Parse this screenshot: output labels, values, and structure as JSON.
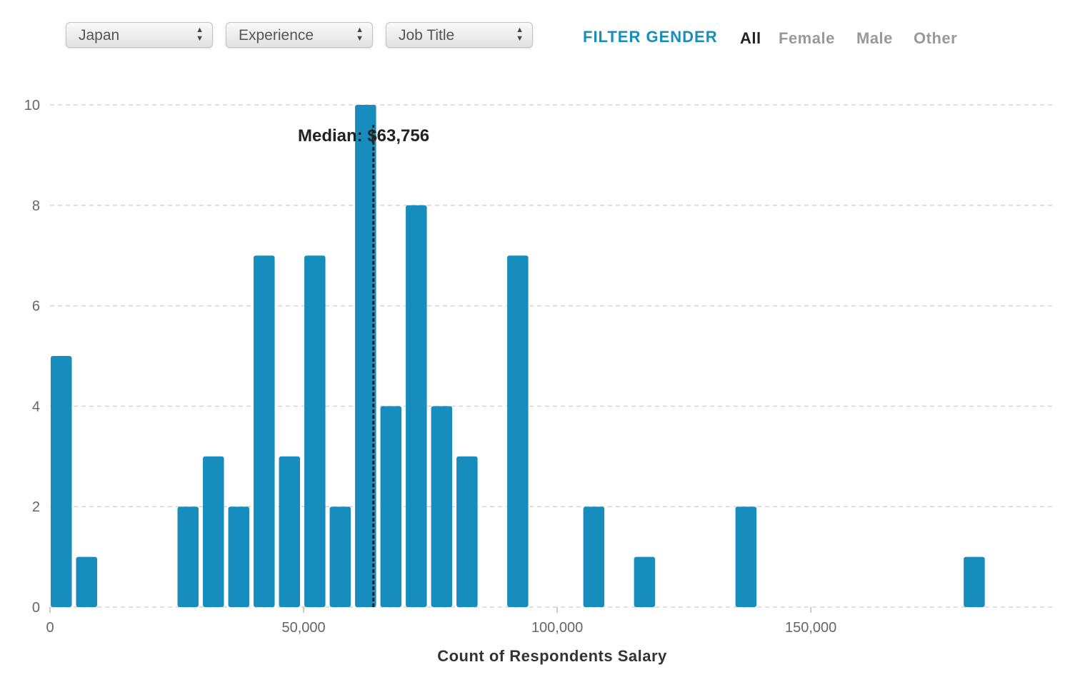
{
  "filters": {
    "country": "Japan",
    "experience": "Experience",
    "job_title": "Job Title"
  },
  "gender_filter": {
    "title": "FILTER GENDER",
    "options": [
      "All",
      "Female",
      "Male",
      "Other"
    ],
    "active": "All"
  },
  "colors": {
    "bar": "#168dbc",
    "accent": "#168dbc",
    "gridline": "#d5d5d5",
    "median_line": "#222222"
  },
  "chart_data": {
    "type": "bar",
    "title": "",
    "xlabel": "Count of Respondents Salary",
    "ylabel": "",
    "xlim": [
      0,
      198000
    ],
    "ylim": [
      0,
      10
    ],
    "yticks": [
      0,
      2,
      4,
      6,
      8,
      10
    ],
    "xticks": [
      0,
      50000,
      100000,
      150000
    ],
    "xtick_labels": [
      "0",
      "50,000",
      "100,000",
      "150,000"
    ],
    "grid": "horizontal dashed",
    "bin_width": 5000,
    "bins": [
      {
        "x0": 0,
        "x1": 5000,
        "count": 5
      },
      {
        "x0": 5000,
        "x1": 10000,
        "count": 1
      },
      {
        "x0": 25000,
        "x1": 30000,
        "count": 2
      },
      {
        "x0": 30000,
        "x1": 35000,
        "count": 3
      },
      {
        "x0": 35000,
        "x1": 40000,
        "count": 2
      },
      {
        "x0": 40000,
        "x1": 45000,
        "count": 7
      },
      {
        "x0": 45000,
        "x1": 50000,
        "count": 3
      },
      {
        "x0": 50000,
        "x1": 55000,
        "count": 7
      },
      {
        "x0": 55000,
        "x1": 60000,
        "count": 2
      },
      {
        "x0": 60000,
        "x1": 65000,
        "count": 10
      },
      {
        "x0": 65000,
        "x1": 70000,
        "count": 4
      },
      {
        "x0": 70000,
        "x1": 75000,
        "count": 8
      },
      {
        "x0": 75000,
        "x1": 80000,
        "count": 4
      },
      {
        "x0": 80000,
        "x1": 85000,
        "count": 3
      },
      {
        "x0": 90000,
        "x1": 95000,
        "count": 7
      },
      {
        "x0": 105000,
        "x1": 110000,
        "count": 2
      },
      {
        "x0": 115000,
        "x1": 120000,
        "count": 1
      },
      {
        "x0": 135000,
        "x1": 140000,
        "count": 2
      },
      {
        "x0": 180000,
        "x1": 185000,
        "count": 1
      }
    ],
    "median": 63756,
    "median_label": "Median: $63,756"
  }
}
